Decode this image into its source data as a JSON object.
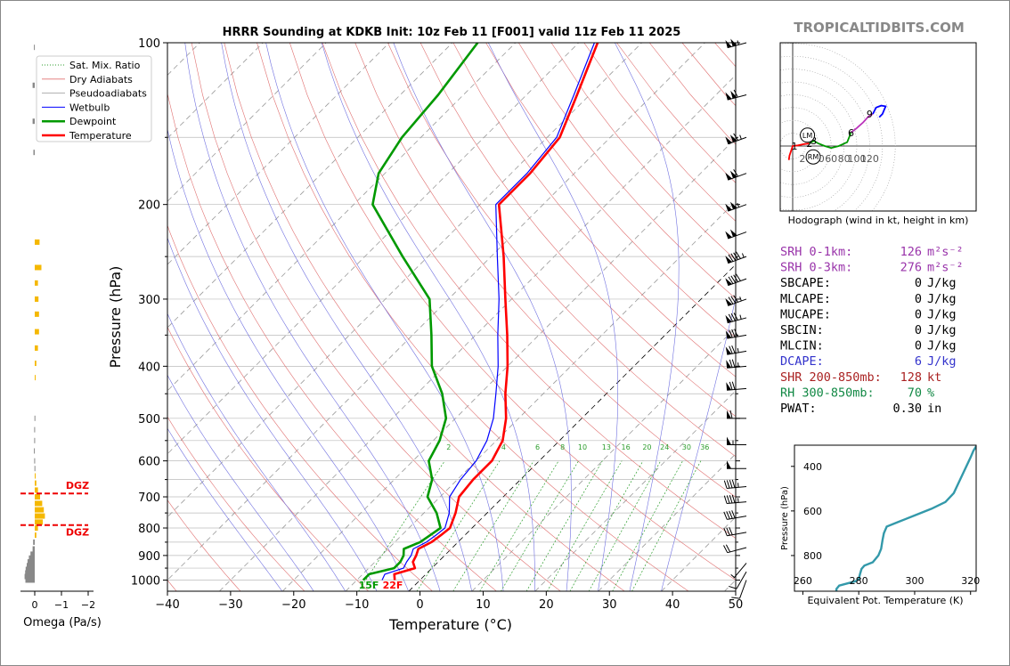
{
  "title": "HRRR Sounding at KDKB Init: 10z Feb 11 [F001] valid 11z Feb 11 2025",
  "brand": "TROPICALTIDBITS.COM",
  "legend": [
    "Sat. Mix. Ratio",
    "Dry Adiabats",
    "Pseudoadiabats",
    "Wetbulb",
    "Dewpoint",
    "Temperature"
  ],
  "colors": {
    "temperature": "#ff0000",
    "dewpoint": "#009900",
    "wetbulb": "#0000ff",
    "dry": "#e07070",
    "moist": "#7070e0",
    "mix": "#2e9e2e",
    "theta_e": "#3399aa",
    "omega": "#f5b800",
    "srh": "#9933aa",
    "dcape": "#3333cc",
    "shr": "#aa2222",
    "rh": "#118844"
  },
  "chart_data": {
    "type": "skew-t",
    "xlabel": "Temperature (°C)",
    "ylabel": "Pressure (hPa)",
    "xlim": [
      -40,
      50
    ],
    "ylim": [
      1050,
      100
    ],
    "x_ticks": [
      "−40",
      "−30",
      "−20",
      "−10",
      "0",
      "10",
      "20",
      "30",
      "40",
      "50"
    ],
    "y_ticks": [
      "100",
      "200",
      "300",
      "400",
      "500",
      "600",
      "700",
      "800",
      "900",
      "1000"
    ],
    "mix_ratio_labels": [
      "2",
      "4",
      "6",
      "8",
      "10",
      "13",
      "16",
      "20",
      "24",
      "30",
      "36"
    ],
    "surface_labels": {
      "dewpoint": "15F",
      "temperature": "22F"
    },
    "temperature": [
      [
        1000,
        -4
      ],
      [
        975,
        -5
      ],
      [
        950,
        -2.7
      ],
      [
        925,
        -4
      ],
      [
        900,
        -4.5
      ],
      [
        875,
        -5.2
      ],
      [
        850,
        -4.2
      ],
      [
        825,
        -3.8
      ],
      [
        800,
        -3.5
      ],
      [
        750,
        -5
      ],
      [
        700,
        -7
      ],
      [
        650,
        -7.5
      ],
      [
        600,
        -7.5
      ],
      [
        550,
        -9
      ],
      [
        500,
        -12
      ],
      [
        450,
        -16
      ],
      [
        400,
        -20
      ],
      [
        350,
        -25
      ],
      [
        300,
        -31
      ],
      [
        250,
        -38
      ],
      [
        200,
        -47
      ],
      [
        175,
        -47
      ],
      [
        150,
        -48
      ],
      [
        125,
        -52
      ],
      [
        100,
        -57
      ]
    ],
    "dewpoint": [
      [
        1000,
        -9
      ],
      [
        975,
        -9
      ],
      [
        950,
        -6
      ],
      [
        925,
        -6
      ],
      [
        900,
        -6.5
      ],
      [
        875,
        -7.5
      ],
      [
        850,
        -6
      ],
      [
        825,
        -5.5
      ],
      [
        800,
        -5
      ],
      [
        750,
        -8
      ],
      [
        700,
        -12
      ],
      [
        650,
        -14
      ],
      [
        600,
        -17.5
      ],
      [
        550,
        -19
      ],
      [
        500,
        -21.5
      ],
      [
        450,
        -26
      ],
      [
        400,
        -32
      ],
      [
        350,
        -37
      ],
      [
        300,
        -43
      ],
      [
        250,
        -54
      ],
      [
        200,
        -67
      ],
      [
        175,
        -71
      ],
      [
        150,
        -73
      ],
      [
        125,
        -74
      ],
      [
        100,
        -76
      ]
    ],
    "wetbulb": [
      [
        1000,
        -6
      ],
      [
        975,
        -6.5
      ],
      [
        950,
        -4.5
      ],
      [
        925,
        -5
      ],
      [
        900,
        -5.3
      ],
      [
        875,
        -6
      ],
      [
        850,
        -5
      ],
      [
        825,
        -4.6
      ],
      [
        800,
        -4.3
      ],
      [
        750,
        -6
      ],
      [
        700,
        -8.5
      ],
      [
        650,
        -9.5
      ],
      [
        600,
        -10
      ],
      [
        550,
        -11.5
      ],
      [
        500,
        -14
      ],
      [
        450,
        -17.5
      ],
      [
        400,
        -21.5
      ],
      [
        350,
        -26.5
      ],
      [
        300,
        -32
      ],
      [
        250,
        -39
      ],
      [
        200,
        -47.5
      ],
      [
        175,
        -47.5
      ],
      [
        150,
        -48.5
      ],
      [
        125,
        -52.5
      ],
      [
        100,
        -57.5
      ]
    ],
    "wind_barbs": [
      {
        "p": 1000,
        "dir": 200,
        "kt": 10
      },
      {
        "p": 965,
        "dir": 210,
        "kt": 10
      },
      {
        "p": 930,
        "dir": 220,
        "kt": 5
      },
      {
        "p": 870,
        "dir": 255,
        "kt": 20
      },
      {
        "p": 815,
        "dir": 260,
        "kt": 30
      },
      {
        "p": 760,
        "dir": 260,
        "kt": 40
      },
      {
        "p": 715,
        "dir": 265,
        "kt": 45
      },
      {
        "p": 670,
        "dir": 265,
        "kt": 45
      },
      {
        "p": 620,
        "dir": 270,
        "kt": 50
      },
      {
        "p": 560,
        "dir": 270,
        "kt": 55
      },
      {
        "p": 500,
        "dir": 270,
        "kt": 65
      },
      {
        "p": 440,
        "dir": 265,
        "kt": 70
      },
      {
        "p": 400,
        "dir": 265,
        "kt": 75
      },
      {
        "p": 375,
        "dir": 260,
        "kt": 75
      },
      {
        "p": 350,
        "dir": 260,
        "kt": 80
      },
      {
        "p": 325,
        "dir": 255,
        "kt": 85
      },
      {
        "p": 300,
        "dir": 250,
        "kt": 85
      },
      {
        "p": 275,
        "dir": 250,
        "kt": 90
      },
      {
        "p": 250,
        "dir": 250,
        "kt": 95
      },
      {
        "p": 225,
        "dir": 250,
        "kt": 100
      },
      {
        "p": 200,
        "dir": 250,
        "kt": 105
      },
      {
        "p": 175,
        "dir": 250,
        "kt": 110
      },
      {
        "p": 150,
        "dir": 250,
        "kt": 115
      },
      {
        "p": 125,
        "dir": 255,
        "kt": 110
      },
      {
        "p": 100,
        "dir": 255,
        "kt": 105
      }
    ],
    "omega": {
      "xlabel": "Omega (Pa/s)",
      "x_ticks": [
        "0",
        "−1",
        "−2"
      ],
      "dgz_label": "DGZ",
      "dgz_levels": [
        690,
        790
      ],
      "bars": [
        [
          1000,
          0.35
        ],
        [
          985,
          0.38
        ],
        [
          970,
          0.36
        ],
        [
          955,
          0.34
        ],
        [
          940,
          0.3
        ],
        [
          925,
          0.27
        ],
        [
          910,
          0.22
        ],
        [
          895,
          0.16
        ],
        [
          875,
          0.08
        ],
        [
          850,
          0.06
        ],
        [
          825,
          -0.06
        ],
        [
          800,
          -0.12
        ],
        [
          780,
          -0.3
        ],
        [
          760,
          -0.38
        ],
        [
          740,
          -0.34
        ],
        [
          720,
          -0.28
        ],
        [
          700,
          -0.2
        ],
        [
          680,
          -0.12
        ],
        [
          660,
          -0.06
        ],
        [
          640,
          -0.03
        ],
        [
          620,
          0.01
        ],
        [
          600,
          0.02
        ],
        [
          575,
          0.03
        ],
        [
          550,
          0.02
        ],
        [
          525,
          0.02
        ],
        [
          500,
          0.01
        ],
        [
          420,
          -0.03
        ],
        [
          395,
          -0.06
        ],
        [
          370,
          -0.12
        ],
        [
          345,
          -0.16
        ],
        [
          320,
          -0.16
        ],
        [
          300,
          -0.14
        ],
        [
          280,
          -0.12
        ],
        [
          262,
          -0.25
        ],
        [
          235,
          -0.18
        ],
        [
          160,
          0.05
        ],
        [
          140,
          0.08
        ],
        [
          120,
          0.08
        ],
        [
          102,
          0.03
        ]
      ]
    },
    "hodograph": {
      "title": "Hodograph (wind in kt, height in km)",
      "ring_labels": [
        "20",
        "40",
        "60",
        "80",
        "100",
        "120"
      ],
      "height_labels": [
        {
          "k": "1",
          "u": 0,
          "v": 0
        },
        {
          "k": "2",
          "u": 26,
          "v": 4
        },
        {
          "k": "3",
          "u": 33,
          "v": 8
        },
        {
          "k": "6",
          "u": 91,
          "v": 21
        },
        {
          "k": "9",
          "u": 120,
          "v": 50
        }
      ],
      "LM": {
        "label": "LM",
        "u": 23,
        "v": 17
      },
      "RM": {
        "label": "RM",
        "u": 32,
        "v": -17
      },
      "segments": [
        {
          "color": "#ff0000",
          "pts": [
            [
              -6,
              -22
            ],
            [
              -5,
              -15
            ],
            [
              -2,
              -6
            ],
            [
              0,
              0
            ],
            [
              8,
              1
            ],
            [
              18,
              3
            ],
            [
              26,
              4
            ]
          ]
        },
        {
          "color": "#009900",
          "pts": [
            [
              26,
              4
            ],
            [
              33,
              8
            ],
            [
              40,
              4
            ],
            [
              50,
              0
            ],
            [
              60,
              -3
            ],
            [
              72,
              0
            ],
            [
              85,
              6
            ],
            [
              91,
              21
            ]
          ]
        },
        {
          "color": "#bb33bb",
          "pts": [
            [
              91,
              21
            ],
            [
              100,
              28
            ],
            [
              110,
              37
            ],
            [
              118,
              46
            ],
            [
              125,
              50
            ]
          ]
        },
        {
          "color": "#0000ff",
          "pts": [
            [
              125,
              50
            ],
            [
              130,
              60
            ],
            [
              138,
              63
            ],
            [
              145,
              62
            ],
            [
              140,
              50
            ],
            [
              135,
              45
            ]
          ]
        }
      ]
    },
    "theta_e": {
      "xlabel": "Equivalent Pot. Temperature (K)",
      "ylabel": "Pressure (hPa)",
      "x_ticks": [
        "260",
        "280",
        "300",
        "320"
      ],
      "y_ticks": [
        "400",
        "600",
        "800"
      ],
      "xlim": [
        257,
        322
      ],
      "ylim": [
        960,
        305
      ],
      "profile": [
        [
          960,
          272
        ],
        [
          950,
          272
        ],
        [
          935,
          273
        ],
        [
          925,
          276
        ],
        [
          915,
          279
        ],
        [
          905,
          280
        ],
        [
          880,
          280.5
        ],
        [
          860,
          281
        ],
        [
          845,
          282
        ],
        [
          830,
          285
        ],
        [
          800,
          287
        ],
        [
          770,
          288
        ],
        [
          730,
          288.5
        ],
        [
          700,
          289
        ],
        [
          670,
          290
        ],
        [
          650,
          294
        ],
        [
          620,
          300
        ],
        [
          590,
          306
        ],
        [
          560,
          311
        ],
        [
          520,
          314
        ],
        [
          480,
          315.5
        ],
        [
          440,
          317
        ],
        [
          400,
          318.5
        ],
        [
          360,
          320
        ],
        [
          330,
          321
        ],
        [
          310,
          322
        ]
      ]
    }
  },
  "indices": [
    {
      "label": "SRH 0-1km:",
      "value": "126",
      "unit": "m²s⁻²",
      "color": "#9933aa"
    },
    {
      "label": "SRH 0-3km:",
      "value": "276",
      "unit": "m²s⁻²",
      "color": "#9933aa"
    },
    {
      "label": "SBCAPE:",
      "value": "0",
      "unit": "J/kg",
      "color": "#000000"
    },
    {
      "label": "MLCAPE:",
      "value": "0",
      "unit": "J/kg",
      "color": "#000000"
    },
    {
      "label": "MUCAPE:",
      "value": "0",
      "unit": "J/kg",
      "color": "#000000"
    },
    {
      "label": "SBCIN:",
      "value": "0",
      "unit": "J/kg",
      "color": "#000000"
    },
    {
      "label": "MLCIN:",
      "value": "0",
      "unit": "J/kg",
      "color": "#000000"
    },
    {
      "label": "DCAPE:",
      "value": "6",
      "unit": "J/kg",
      "color": "#3333cc"
    },
    {
      "label": "SHR 200-850mb:",
      "value": "128",
      "unit": "kt",
      "color": "#aa2222"
    },
    {
      "label": "RH 300-850mb:",
      "value": "70",
      "unit": "%",
      "color": "#118844"
    },
    {
      "label": "PWAT:",
      "value": "0.30",
      "unit": "in",
      "color": "#000000"
    }
  ]
}
